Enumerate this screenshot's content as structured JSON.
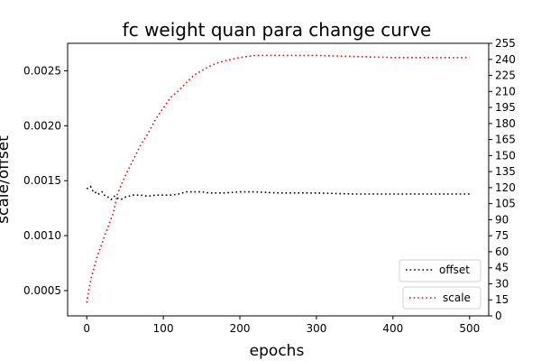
{
  "chart_data": {
    "type": "line",
    "title": "fc weight quan para change curve",
    "xlabel": "epochs",
    "ylabel": "scale/offset",
    "xlim": [
      -25,
      525
    ],
    "ylim": [
      0.00027,
      0.00275
    ],
    "y2lim": [
      0,
      255
    ],
    "x_ticks": [
      0,
      100,
      200,
      300,
      400,
      500
    ],
    "x_tick_labels": [
      "0",
      "100",
      "200",
      "300",
      "400",
      "500"
    ],
    "y_ticks": [
      0.0005,
      0.001,
      0.0015,
      0.002,
      0.0025
    ],
    "y_tick_labels": [
      "0.0005",
      "0.0010",
      "0.0015",
      "0.0020",
      "0.0025"
    ],
    "y2_ticks": [
      0,
      15,
      30,
      45,
      60,
      75,
      90,
      105,
      120,
      135,
      150,
      165,
      180,
      195,
      210,
      225,
      240,
      255
    ],
    "y2_tick_labels": [
      "0",
      "15",
      "30",
      "45",
      "60",
      "75",
      "90",
      "105",
      "120",
      "135",
      "150",
      "165",
      "180",
      "195",
      "210",
      "225",
      "240",
      "255"
    ],
    "grid": false,
    "series": [
      {
        "name": "offset",
        "axis": "right",
        "color": "#000000",
        "style": "dotted",
        "x": [
          0,
          3,
          5,
          7,
          10,
          13,
          16,
          20,
          24,
          28,
          32,
          36,
          40,
          45,
          50,
          55,
          60,
          70,
          80,
          90,
          100,
          110,
          120,
          130,
          140,
          150,
          160,
          170,
          180,
          200,
          220,
          250,
          300,
          350,
          400,
          450,
          500
        ],
        "y": [
          119,
          120,
          121,
          118,
          115,
          116,
          114,
          116,
          112,
          111,
          109,
          112,
          110,
          109,
          111,
          112,
          113,
          113,
          112,
          113,
          113,
          113,
          114,
          116,
          116,
          116,
          115,
          115,
          115,
          116,
          116,
          115,
          115,
          114,
          114,
          114,
          114
        ]
      },
      {
        "name": "scale",
        "axis": "left",
        "color": "#ff0000",
        "style": "dotted",
        "x": [
          0,
          3,
          6,
          10,
          15,
          20,
          25,
          30,
          35,
          40,
          45,
          50,
          55,
          60,
          70,
          80,
          90,
          100,
          110,
          120,
          130,
          140,
          150,
          160,
          170,
          180,
          200,
          220,
          250,
          280,
          300,
          350,
          400,
          450,
          500
        ],
        "y": [
          0.00039,
          0.00052,
          0.00062,
          0.00072,
          0.00084,
          0.00093,
          0.00103,
          0.00112,
          0.00121,
          0.00138,
          0.00146,
          0.00154,
          0.00161,
          0.00168,
          0.00182,
          0.00193,
          0.00206,
          0.00216,
          0.00226,
          0.00232,
          0.00239,
          0.00246,
          0.0025,
          0.00254,
          0.00257,
          0.00259,
          0.00262,
          0.00264,
          0.00264,
          0.00264,
          0.00264,
          0.00263,
          0.00262,
          0.00262,
          0.00262
        ]
      }
    ],
    "legend": [
      {
        "label": "offset",
        "color": "#000000",
        "placement": "lower-right-upper"
      },
      {
        "label": "scale",
        "color": "#ff0000",
        "placement": "lower-right"
      }
    ]
  }
}
